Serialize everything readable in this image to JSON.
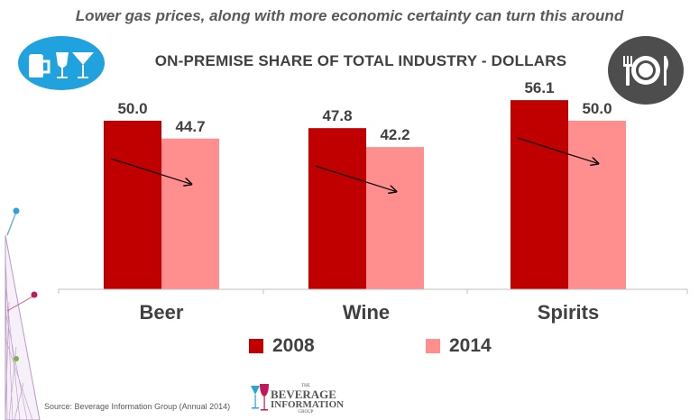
{
  "slide": {
    "subtitle": "Lower gas prices, along with more economic certainty can turn this around",
    "source": "Source: Beverage Information Group (Annual 2014)",
    "logo": {
      "top": "THE",
      "line1": "BEVERAGE",
      "line2": "INFORMATION",
      "line3": "GROUP"
    },
    "icons": {
      "left": "drinks-icon",
      "right": "dining-icon"
    }
  },
  "chart_data": {
    "type": "bar",
    "title": "ON-PREMISE SHARE OF TOTAL INDUSTRY - DOLLARS",
    "categories": [
      "Beer",
      "Wine",
      "Spirits"
    ],
    "series": [
      {
        "name": "2008",
        "values": [
          50.0,
          47.8,
          56.1
        ],
        "color": "#c00000"
      },
      {
        "name": "2014",
        "values": [
          44.7,
          42.2,
          50.0
        ],
        "color": "#ff8f8f"
      }
    ],
    "value_labels": [
      [
        "50.0",
        "47.8",
        "56.1"
      ],
      [
        "44.7",
        "42.2",
        "50.0"
      ]
    ],
    "ylim": [
      0,
      58
    ],
    "grid": false,
    "legend_position": "bottom",
    "trend_arrows": true,
    "xlabel": "",
    "ylabel": ""
  }
}
